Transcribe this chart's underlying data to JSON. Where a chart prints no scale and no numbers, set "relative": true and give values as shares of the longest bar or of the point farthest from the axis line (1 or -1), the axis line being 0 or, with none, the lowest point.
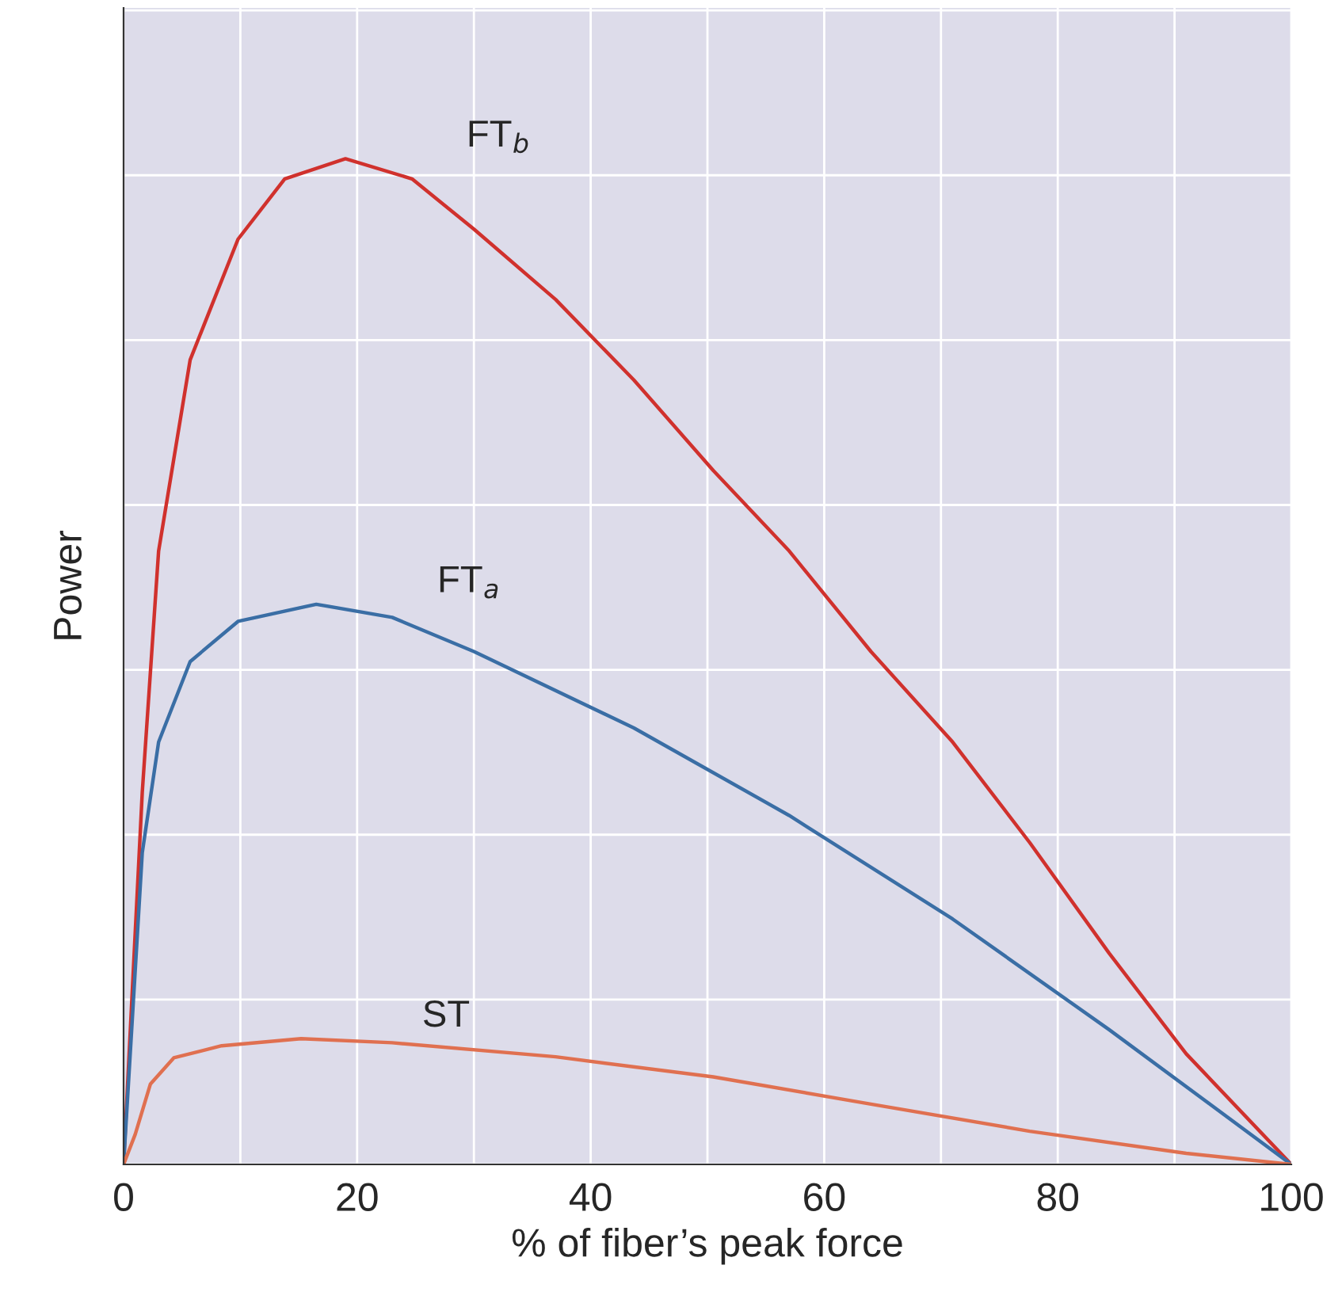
{
  "chart_data": {
    "type": "line",
    "relative": true,
    "xlabel": "% of fiber’s peak force",
    "ylabel": "Power",
    "xlim": [
      0,
      100
    ],
    "xticks": [
      0,
      {
        "value": 10,
        "label": null
      },
      20,
      {
        "value": 30,
        "label": null
      },
      40,
      {
        "value": 50,
        "label": null
      },
      60,
      {
        "value": 70,
        "label": null
      },
      80,
      {
        "value": 90,
        "label": null
      },
      100
    ],
    "grid": true,
    "legend": false,
    "marker": "none",
    "line_style": "solid",
    "series": [
      {
        "name": "FT$_{b}$",
        "color": "#d0312d",
        "x": [
          0,
          1.6,
          3,
          5.7,
          9.8,
          13.8,
          19,
          24.7,
          30,
          37,
          43.7,
          50.5,
          57,
          64,
          71,
          77.6,
          84.4,
          91,
          100
        ],
        "values": [
          0,
          0.37,
          0.61,
          0.8,
          0.92,
          0.98,
          1.0,
          0.98,
          0.93,
          0.86,
          0.78,
          0.69,
          0.61,
          0.51,
          0.42,
          0.32,
          0.21,
          0.11,
          0
        ]
      },
      {
        "name": "FT$_{a}$",
        "color": "#3a6ea5",
        "x": [
          0,
          1.6,
          3,
          5.7,
          9.8,
          16.5,
          23,
          30,
          43.7,
          57,
          71,
          84.4,
          100
        ],
        "values": [
          0,
          0.31,
          0.42,
          0.5,
          0.54,
          0.557,
          0.544,
          0.51,
          0.434,
          0.347,
          0.244,
          0.134,
          0
        ]
      },
      {
        "name": "ST",
        "color": "#e07050",
        "x": [
          0,
          1,
          2.3,
          4.3,
          8.4,
          15.2,
          23,
          37,
          50.5,
          64,
          77.6,
          91,
          100
        ],
        "values": [
          0,
          0.03,
          0.08,
          0.106,
          0.118,
          0.125,
          0.121,
          0.107,
          0.087,
          0.06,
          0.033,
          0.011,
          0
        ]
      }
    ]
  }
}
